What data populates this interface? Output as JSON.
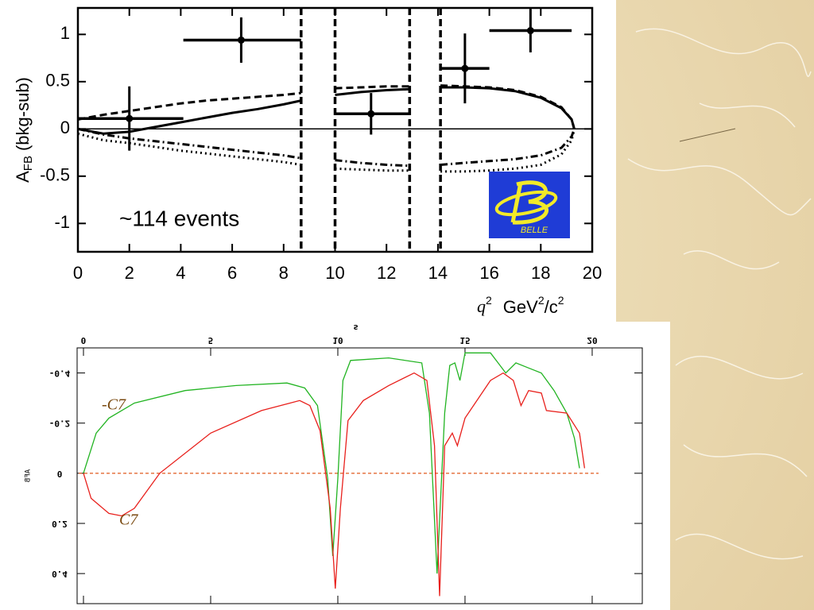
{
  "chart_data": [
    {
      "type": "line",
      "y_label": [
        "A",
        "FB",
        "(bkg-sub)"
      ],
      "x_label": [
        "q",
        "2",
        "GeV",
        "2",
        "/c",
        "2"
      ],
      "annotation": "~114 events",
      "logo_text": "BELLE",
      "xlim": [
        0,
        20
      ],
      "ylim": [
        -1.3,
        1.28
      ],
      "xticks": [
        0,
        2,
        4,
        6,
        8,
        10,
        12,
        14,
        16,
        18,
        20
      ],
      "yticks": [
        -1,
        -0.5,
        0,
        0.5,
        1
      ],
      "hline": 0,
      "hline_color": "#000000",
      "veto_lines": [
        8.68,
        10,
        12.9,
        14.1
      ],
      "x": [
        0,
        1,
        2,
        3,
        4,
        5,
        6,
        7,
        8,
        8.68,
        9.3,
        10,
        11,
        12,
        12.9,
        13.5,
        14.1,
        15,
        16,
        17,
        18,
        18.8,
        19.2,
        19.3
      ],
      "series": [
        {
          "color": "#000000",
          "dash": "solid",
          "values": [
            0,
            -0.05,
            -0.03,
            0.02,
            0.07,
            0.12,
            0.17,
            0.21,
            0.26,
            0.3,
            null,
            0.36,
            0.39,
            0.41,
            0.42,
            null,
            0.44,
            0.44,
            0.43,
            0.4,
            0.33,
            0.22,
            0.1,
            0
          ]
        },
        {
          "color": "#000000",
          "dash": "dashed",
          "values": [
            0.1,
            0.15,
            0.19,
            0.23,
            0.27,
            0.3,
            0.32,
            0.34,
            0.36,
            0.38,
            null,
            0.43,
            0.44,
            0.45,
            0.45,
            null,
            0.46,
            0.45,
            0.44,
            0.41,
            0.34,
            0.23,
            0.1,
            0
          ]
        },
        {
          "color": "#000000",
          "dash": "dashdot",
          "values": [
            0,
            -0.06,
            -0.1,
            -0.13,
            -0.16,
            -0.19,
            -0.22,
            -0.25,
            -0.28,
            -0.31,
            null,
            -0.33,
            -0.36,
            -0.38,
            -0.39,
            null,
            -0.38,
            -0.36,
            -0.34,
            -0.32,
            -0.28,
            -0.2,
            -0.08,
            0
          ]
        },
        {
          "color": "#000000",
          "dash": "dotted",
          "values": [
            -0.05,
            -0.12,
            -0.15,
            -0.19,
            -0.23,
            -0.26,
            -0.29,
            -0.32,
            -0.35,
            -0.38,
            null,
            -0.42,
            -0.43,
            -0.44,
            -0.44,
            null,
            -0.45,
            -0.45,
            -0.44,
            -0.42,
            -0.38,
            -0.27,
            -0.12,
            0
          ]
        }
      ],
      "points": {
        "color": "#000000",
        "x": [
          2,
          6.35,
          11.4,
          15.05,
          17.6
        ],
        "y": [
          0.11,
          0.94,
          0.16,
          0.64,
          1.04
        ],
        "x_low": [
          0,
          4.1,
          10,
          14.1,
          16
        ],
        "x_high": [
          4.1,
          8.68,
          12.9,
          16,
          19.2
        ],
        "y_err": [
          0.34,
          0.24,
          0.22,
          0.37,
          0.23
        ]
      }
    },
    {
      "type": "line",
      "x_label": "s",
      "y_label": "AFB",
      "mirrored_text": true,
      "y_inverted": true,
      "xlim": [
        -0.25,
        21.97
      ],
      "ylim": [
        -0.5,
        0.52
      ],
      "xticks": [
        0,
        5,
        10,
        15,
        20
      ],
      "yticks": [
        -0.4,
        -0.2,
        0,
        0.2,
        0.4
      ],
      "hline": 0,
      "hline_color": "#e05a1e",
      "series": [
        {
          "name": "-C7",
          "color": "#22b422",
          "dash": "solid",
          "x": [
            0,
            0.5,
            1,
            2,
            4,
            6,
            8,
            8.7,
            9.2,
            9.6,
            9.8,
            10,
            10.2,
            10.5,
            12,
            13.3,
            13.6,
            13.9,
            14.2,
            14.4,
            14.6,
            14.8,
            15,
            16,
            16.3,
            16.6,
            17,
            17.5,
            18,
            18.5,
            19,
            19.3,
            19.5
          ],
          "values": [
            0,
            -0.16,
            -0.22,
            -0.28,
            -0.33,
            -0.35,
            -0.36,
            -0.34,
            -0.27,
            0.02,
            0.33,
            0.02,
            -0.37,
            -0.45,
            -0.46,
            -0.44,
            -0.24,
            0.4,
            -0.24,
            -0.43,
            -0.44,
            -0.37,
            -0.48,
            -0.48,
            -0.44,
            -0.4,
            -0.44,
            -0.42,
            -0.4,
            -0.33,
            -0.24,
            -0.14,
            -0.02
          ]
        },
        {
          "name": "C7",
          "color": "#e8201c",
          "dash": "solid",
          "x": [
            0,
            0.3,
            1,
            1.5,
            2,
            3,
            5,
            7,
            8.5,
            8.9,
            9.3,
            9.7,
            9.9,
            10.1,
            10.4,
            11,
            12,
            13,
            13.5,
            13.8,
            14,
            14.2,
            14.5,
            14.7,
            15,
            16,
            16.5,
            16.9,
            17.2,
            17.5,
            18,
            18.2,
            19,
            19.5,
            19.7
          ],
          "values": [
            0,
            0.1,
            0.16,
            0.17,
            0.14,
            0,
            -0.16,
            -0.25,
            -0.29,
            -0.27,
            -0.17,
            0.14,
            0.46,
            0.14,
            -0.21,
            -0.29,
            -0.35,
            -0.4,
            -0.37,
            -0.11,
            0.49,
            -0.11,
            -0.16,
            -0.11,
            -0.22,
            -0.37,
            -0.4,
            -0.37,
            -0.27,
            -0.33,
            -0.32,
            -0.25,
            -0.24,
            -0.16,
            -0.02
          ]
        }
      ]
    }
  ]
}
